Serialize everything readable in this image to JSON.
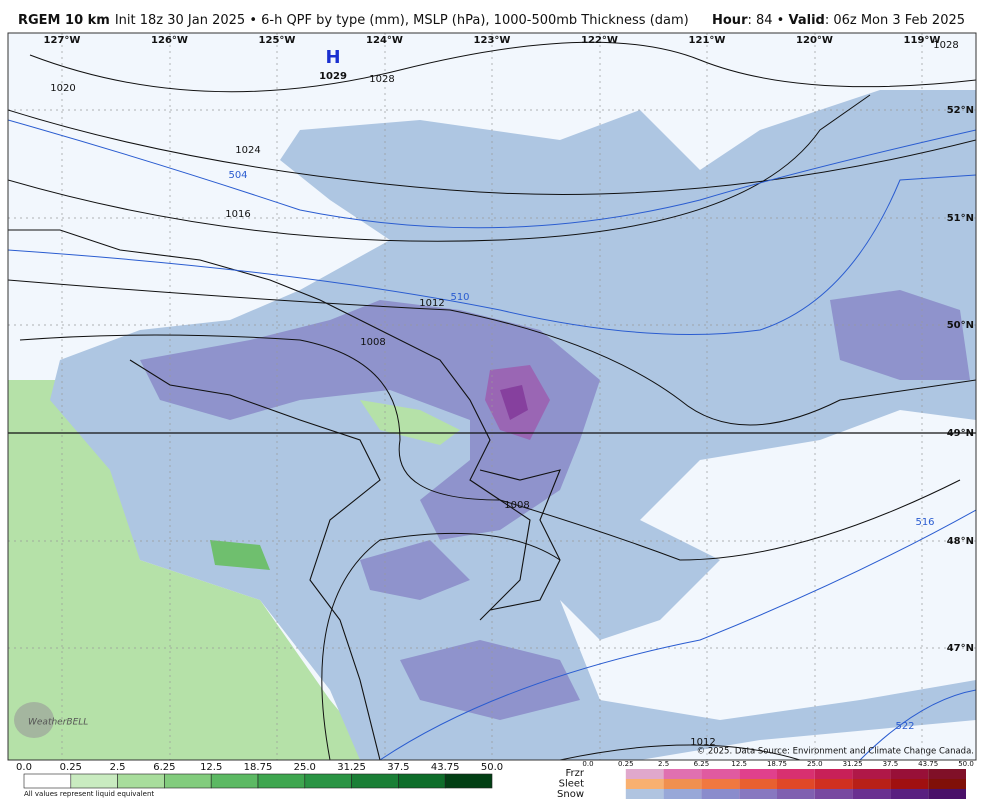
{
  "header": {
    "model": "RGEM 10 km",
    "description": "Init 18z 30 Jan 2025 • 6-h QPF by type (mm), MSLP (hPa), 1000-500mb Thickness (dam)",
    "hour_label": "Hour",
    "hour_value": ": 84 • ",
    "valid_label": "Valid",
    "valid_value": ": 06z Mon 3 Feb 2025"
  },
  "map": {
    "lon_labels": [
      "127°W",
      "126°W",
      "125°W",
      "124°W",
      "123°W",
      "122°W",
      "121°W",
      "120°W",
      "119°W"
    ],
    "lat_labels": [
      "52°N",
      "51°N",
      "50°N",
      "49°N",
      "48°N",
      "47°N"
    ],
    "high": {
      "symbol": "H",
      "pressure": "1029"
    },
    "pressure_labels": [
      "1028",
      "1020",
      "1024",
      "1016",
      "1012",
      "1008",
      "1008",
      "1012",
      "1028"
    ],
    "thickness_labels": [
      "504",
      "510",
      "516",
      "522"
    ],
    "credit": "© 2025. Data Source: Environment and Climate Change Canada.",
    "logo": "WeatherBELL"
  },
  "legend": {
    "rain_values": [
      "0.0",
      "0.25",
      "2.5",
      "6.25",
      "12.5",
      "18.75",
      "25.0",
      "31.25",
      "37.5",
      "43.75",
      "50.0"
    ],
    "note": "All values represent liquid equivalent",
    "types": [
      "Frzr",
      "Sleet",
      "Snow"
    ],
    "type_values": [
      "0.0",
      "0.25",
      "2.5",
      "6.25",
      "12.5",
      "18.75",
      "25.0",
      "31.25",
      "37.5",
      "43.75",
      "50.0"
    ]
  }
}
